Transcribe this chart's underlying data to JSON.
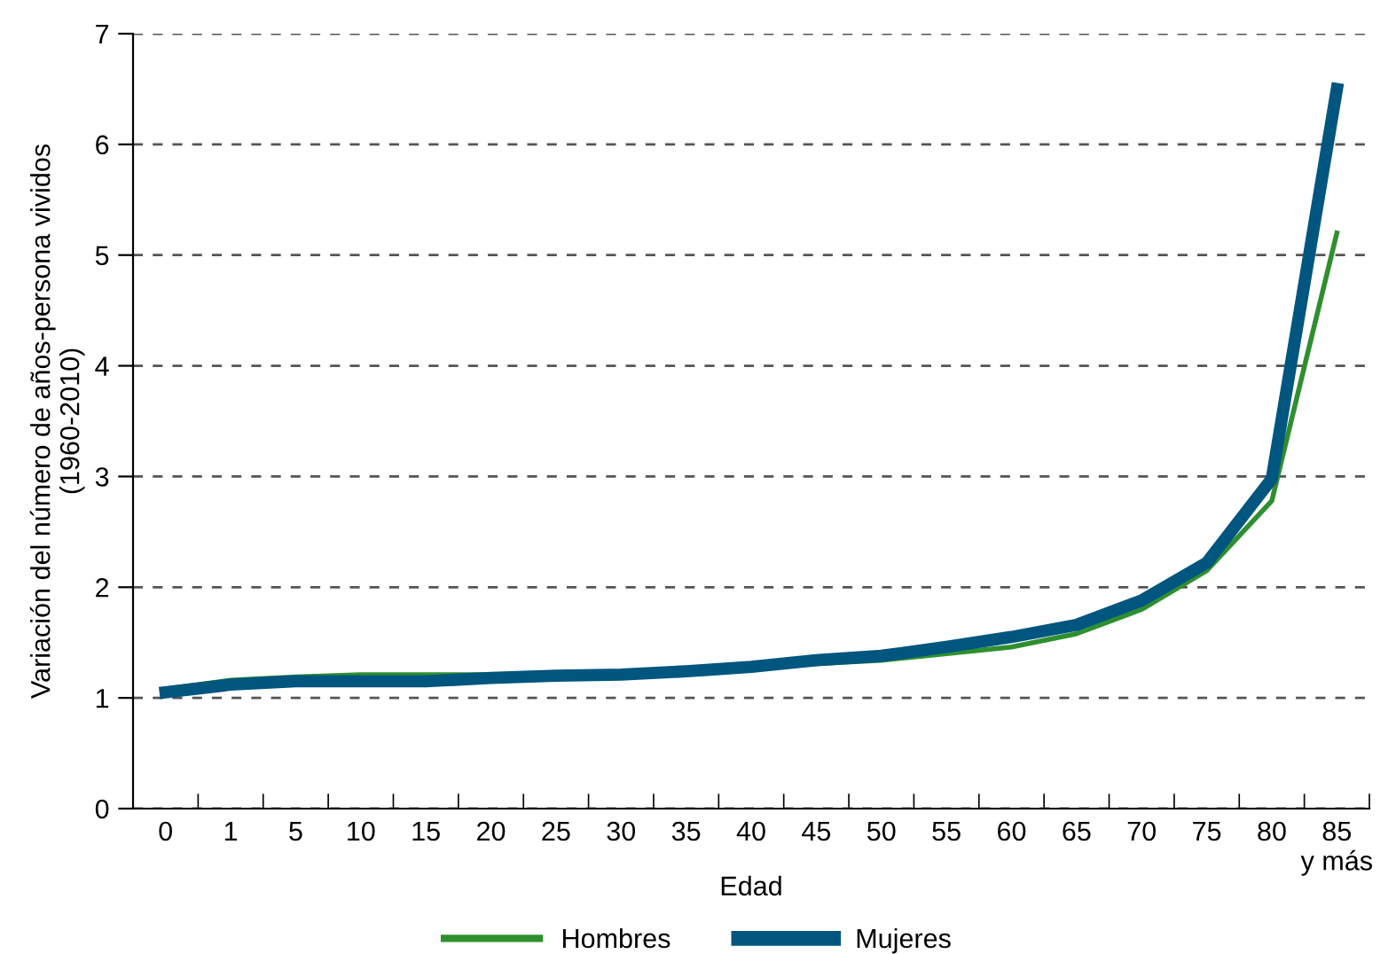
{
  "chart_data": {
    "type": "line",
    "xlabel": "Edad",
    "ylabel": "Variación del número de años-persona vividos\n(1960-2010)",
    "categories": [
      "0",
      "1",
      "5",
      "10",
      "15",
      "20",
      "25",
      "30",
      "35",
      "40",
      "45",
      "50",
      "55",
      "60",
      "65",
      "70",
      "75",
      "80",
      "85\ny más"
    ],
    "series": [
      {
        "name": "Hombres",
        "color": "#2f8f2f",
        "values": [
          1.08,
          1.16,
          1.19,
          1.21,
          1.21,
          1.21,
          1.22,
          1.23,
          1.24,
          1.27,
          1.31,
          1.34,
          1.4,
          1.46,
          1.58,
          1.8,
          2.15,
          2.78,
          5.2
        ]
      },
      {
        "name": "Mujeres",
        "color": "#00567f",
        "values": [
          1.05,
          1.12,
          1.15,
          1.15,
          1.15,
          1.18,
          1.2,
          1.21,
          1.24,
          1.28,
          1.34,
          1.38,
          1.46,
          1.55,
          1.66,
          1.88,
          2.22,
          2.98,
          6.5
        ]
      }
    ],
    "ylim": [
      0,
      7
    ],
    "yticks": [
      0,
      1,
      2,
      3,
      4,
      5,
      6,
      7
    ],
    "grid": "y",
    "legend": "bottom",
    "line_style": "solid",
    "marker": "none"
  }
}
